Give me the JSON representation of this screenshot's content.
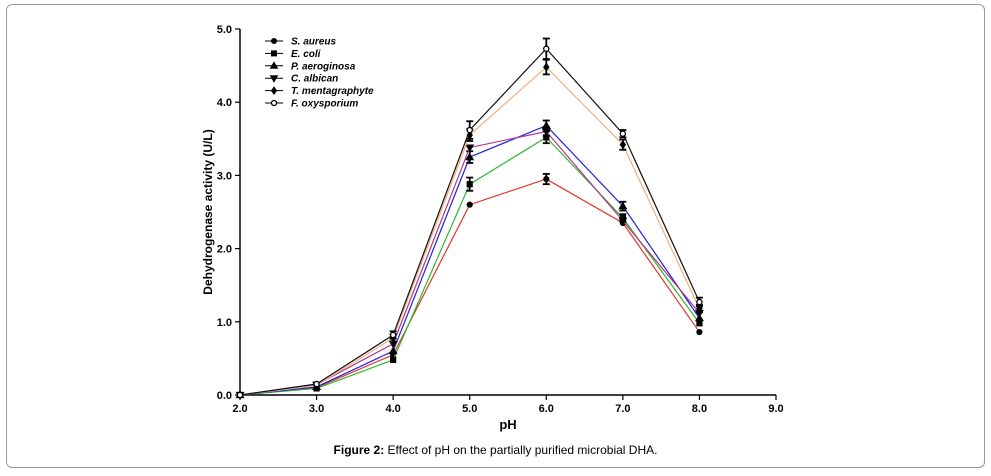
{
  "caption": {
    "label": "Figure 2:",
    "text": "Effect of pH on the partially purified microbial DHA."
  },
  "chart_data": {
    "type": "line",
    "xlabel": "pH",
    "ylabel": "Dehydrogenase activity (U/L)",
    "xlim": [
      2.0,
      9.0
    ],
    "ylim": [
      0.0,
      5.0
    ],
    "xticks": [
      "2.0",
      "3.0",
      "4.0",
      "5.0",
      "6.0",
      "7.0",
      "8.0",
      "9.0"
    ],
    "yticks": [
      "0.0",
      "1.0",
      "2.0",
      "3.0",
      "4.0",
      "5.0"
    ],
    "legend_position": "top-left",
    "grid": false,
    "x": [
      2.0,
      3.0,
      4.0,
      5.0,
      6.0,
      7.0,
      8.0
    ],
    "series": [
      {
        "name": "S. aureus",
        "marker": "circle-filled",
        "line_color": "#e8352b",
        "values": [
          0.0,
          0.1,
          0.55,
          2.6,
          2.95,
          2.35,
          0.86
        ],
        "errors": [
          0,
          0,
          0,
          0,
          0.07,
          0,
          0
        ]
      },
      {
        "name": "E. coli",
        "marker": "square",
        "line_color": "#2eb82e",
        "values": [
          0.0,
          0.09,
          0.48,
          2.88,
          3.52,
          2.42,
          0.98
        ],
        "errors": [
          0,
          0,
          0,
          0.09,
          0.08,
          0.05,
          0
        ]
      },
      {
        "name": "P. aeroginosa",
        "marker": "triangle-up",
        "line_color": "#1f1fe0",
        "values": [
          0.0,
          0.11,
          0.6,
          3.25,
          3.68,
          2.58,
          1.05
        ],
        "errors": [
          0,
          0,
          0,
          0.08,
          0.07,
          0.06,
          0
        ]
      },
      {
        "name": "C. albican",
        "marker": "triangle-down",
        "line_color": "#b0358c",
        "values": [
          0.0,
          0.14,
          0.7,
          3.38,
          3.6,
          2.38,
          1.12
        ],
        "errors": [
          0,
          0,
          0,
          0,
          0.06,
          0,
          0
        ]
      },
      {
        "name": "T. mentagraphyte",
        "marker": "diamond",
        "line_color": "#f0b080",
        "values": [
          0.0,
          0.13,
          0.78,
          3.55,
          4.48,
          3.42,
          1.18
        ],
        "errors": [
          0,
          0,
          0.05,
          0.08,
          0.1,
          0.07,
          0.05
        ]
      },
      {
        "name": "F. oxysporium",
        "marker": "circle-open",
        "line_color": "#111111",
        "values": [
          0.0,
          0.15,
          0.82,
          3.62,
          4.73,
          3.57,
          1.27
        ],
        "errors": [
          0,
          0,
          0.05,
          0.12,
          0.14,
          0.05,
          0.06
        ]
      }
    ]
  }
}
